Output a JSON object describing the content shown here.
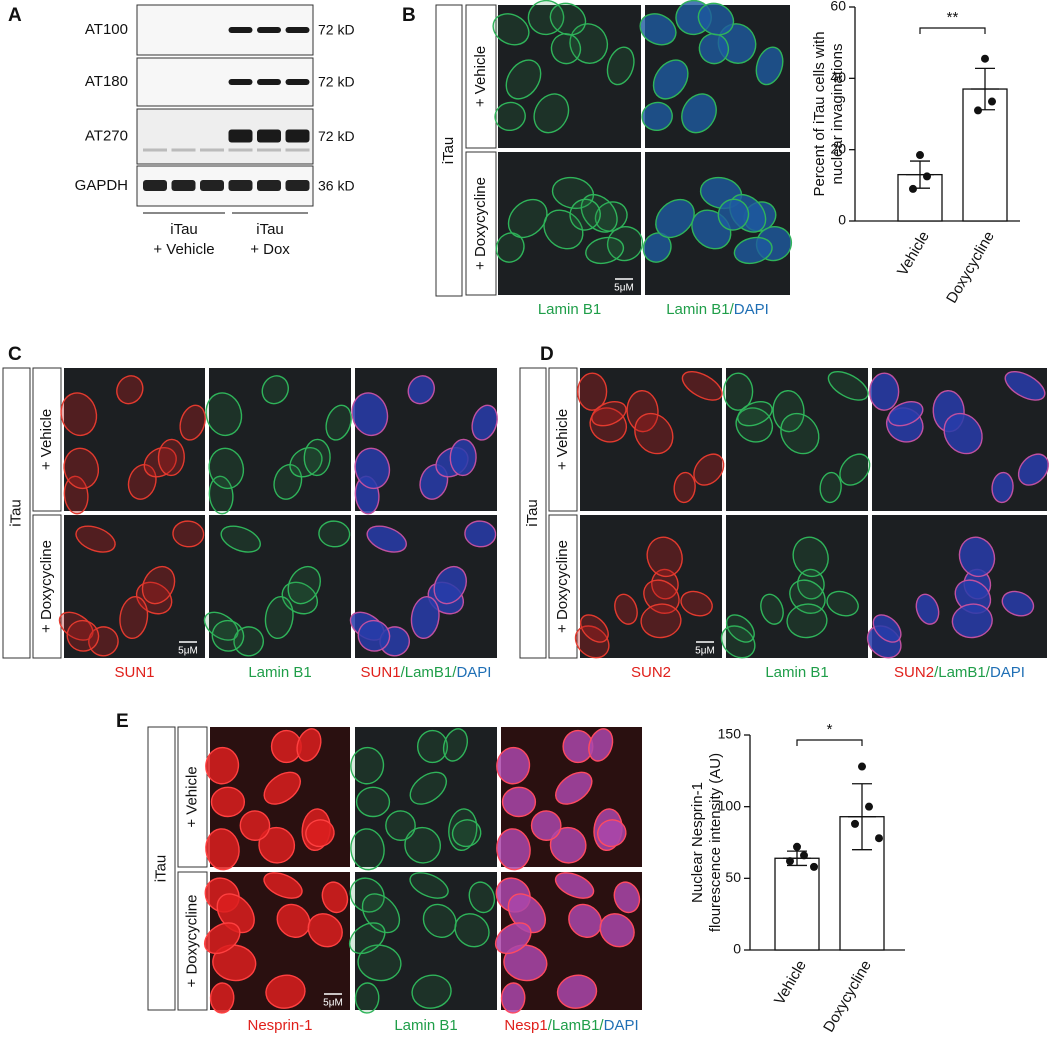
{
  "panels": {
    "A": {
      "label": "A",
      "rows": [
        "AT100",
        "AT180",
        "AT270",
        "GAPDH"
      ],
      "sizes": [
        "72 kD",
        "72 kD",
        "72 kD",
        "36 kD"
      ],
      "groups": [
        [
          "iTau",
          "+ Vehicle"
        ],
        [
          "iTau",
          "+ Dox"
        ]
      ]
    },
    "B": {
      "label": "B",
      "side": "iTau",
      "rows": [
        "+ Vehicle",
        "+ Doxycycline"
      ],
      "scale": "5μM",
      "captions": [
        [
          {
            "text": "Lamin B1",
            "color": "#1f9e49"
          }
        ],
        [
          {
            "text": "Lamin B1/",
            "color": "#1f9e49"
          },
          {
            "text": "DAPI",
            "color": "#1f6fb5"
          }
        ]
      ]
    },
    "C": {
      "label": "C",
      "side": "iTau",
      "rows": [
        "+ Vehicle",
        "+ Doxycycline"
      ],
      "scale": "5μM",
      "captions": [
        [
          {
            "text": "SUN1",
            "color": "#e0201b"
          }
        ],
        [
          {
            "text": "Lamin B1",
            "color": "#1f9e49"
          }
        ],
        [
          {
            "text": "SUN1",
            "color": "#e0201b"
          },
          {
            "text": "/LamB1/",
            "color": "#1f9e49"
          },
          {
            "text": "DAPI",
            "color": "#1f6fb5"
          }
        ]
      ]
    },
    "D": {
      "label": "D",
      "side": "iTau",
      "rows": [
        "+ Vehicle",
        "+ Doxycycline"
      ],
      "scale": "5μM",
      "captions": [
        [
          {
            "text": "SUN2",
            "color": "#e0201b"
          }
        ],
        [
          {
            "text": "Lamin B1",
            "color": "#1f9e49"
          }
        ],
        [
          {
            "text": "SUN2",
            "color": "#e0201b"
          },
          {
            "text": "/LamB1/",
            "color": "#1f9e49"
          },
          {
            "text": "DAPI",
            "color": "#1f6fb5"
          }
        ]
      ]
    },
    "E": {
      "label": "E",
      "side": "iTau",
      "rows": [
        "+ Vehicle",
        "+ Doxycycline"
      ],
      "scale": "5μM",
      "captions": [
        [
          {
            "text": "Nesprin-1",
            "color": "#e0201b"
          }
        ],
        [
          {
            "text": "Lamin B1",
            "color": "#1f9e49"
          }
        ],
        [
          {
            "text": "Nesp1",
            "color": "#e0201b"
          },
          {
            "text": "/LamB1/",
            "color": "#1f9e49"
          },
          {
            "text": "DAPI",
            "color": "#1f6fb5"
          }
        ]
      ]
    }
  },
  "chart_data": [
    {
      "type": "bar",
      "ylabel": [
        "Percent of iTau cells with",
        "nuclear invaginations"
      ],
      "categories": [
        "Vehicle",
        "Doxycycline"
      ],
      "values": [
        13,
        37
      ],
      "errors": [
        3.8,
        5.8
      ],
      "points": [
        [
          18.5,
          12.5,
          9
        ],
        [
          45.5,
          33.5,
          31
        ]
      ],
      "color": "#ffffff",
      "ylim": [
        0,
        60
      ],
      "yticks": [
        0,
        20,
        40,
        60
      ],
      "annotation": "**"
    },
    {
      "type": "bar",
      "ylabel": [
        "Nuclear Nesprin-1",
        "flourescence intensity (AU)"
      ],
      "categories": [
        "Vehicle",
        "Doxycycline"
      ],
      "values": [
        64,
        93
      ],
      "errors": [
        5,
        23
      ],
      "points": [
        [
          72,
          66,
          62,
          58
        ],
        [
          128,
          100,
          88,
          78
        ]
      ],
      "color": "#ffffff",
      "ylim": [
        0,
        150
      ],
      "yticks": [
        0,
        50,
        100,
        150
      ],
      "annotation": "*"
    }
  ]
}
